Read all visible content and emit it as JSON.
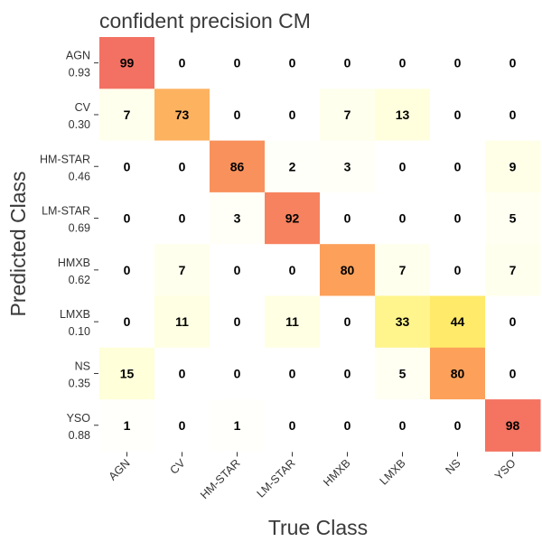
{
  "chart_data": {
    "type": "heatmap",
    "title": "confident precision CM",
    "xlabel": "True Class",
    "ylabel": "Predicted Class",
    "columns": [
      "AGN",
      "CV",
      "HM-STAR",
      "LM-STAR",
      "HMXB",
      "LMXB",
      "NS",
      "YSO"
    ],
    "rows": [
      {
        "label": "AGN",
        "precision": "0.93",
        "values": [
          99,
          0,
          0,
          0,
          0,
          0,
          0,
          0
        ]
      },
      {
        "label": "CV",
        "precision": "0.30",
        "values": [
          7,
          73,
          0,
          0,
          7,
          13,
          0,
          0
        ]
      },
      {
        "label": "HM-STAR",
        "precision": "0.46",
        "values": [
          0,
          0,
          86,
          2,
          3,
          0,
          0,
          9
        ]
      },
      {
        "label": "LM-STAR",
        "precision": "0.69",
        "values": [
          0,
          0,
          3,
          92,
          0,
          0,
          0,
          5
        ]
      },
      {
        "label": "HMXB",
        "precision": "0.62",
        "values": [
          0,
          7,
          0,
          0,
          80,
          7,
          0,
          7
        ]
      },
      {
        "label": "LMXB",
        "precision": "0.10",
        "values": [
          0,
          11,
          0,
          11,
          0,
          33,
          44,
          0
        ]
      },
      {
        "label": "NS",
        "precision": "0.35",
        "values": [
          15,
          0,
          0,
          0,
          0,
          5,
          80,
          0
        ]
      },
      {
        "label": "YSO",
        "precision": "0.88",
        "values": [
          1,
          0,
          1,
          0,
          0,
          0,
          0,
          98
        ]
      }
    ],
    "value_range": [
      0,
      100
    ],
    "colormap": [
      "#ffffff",
      "#ffffcc",
      "#ffef6a",
      "#fed46b",
      "#fca05a",
      "#f36e62"
    ]
  }
}
